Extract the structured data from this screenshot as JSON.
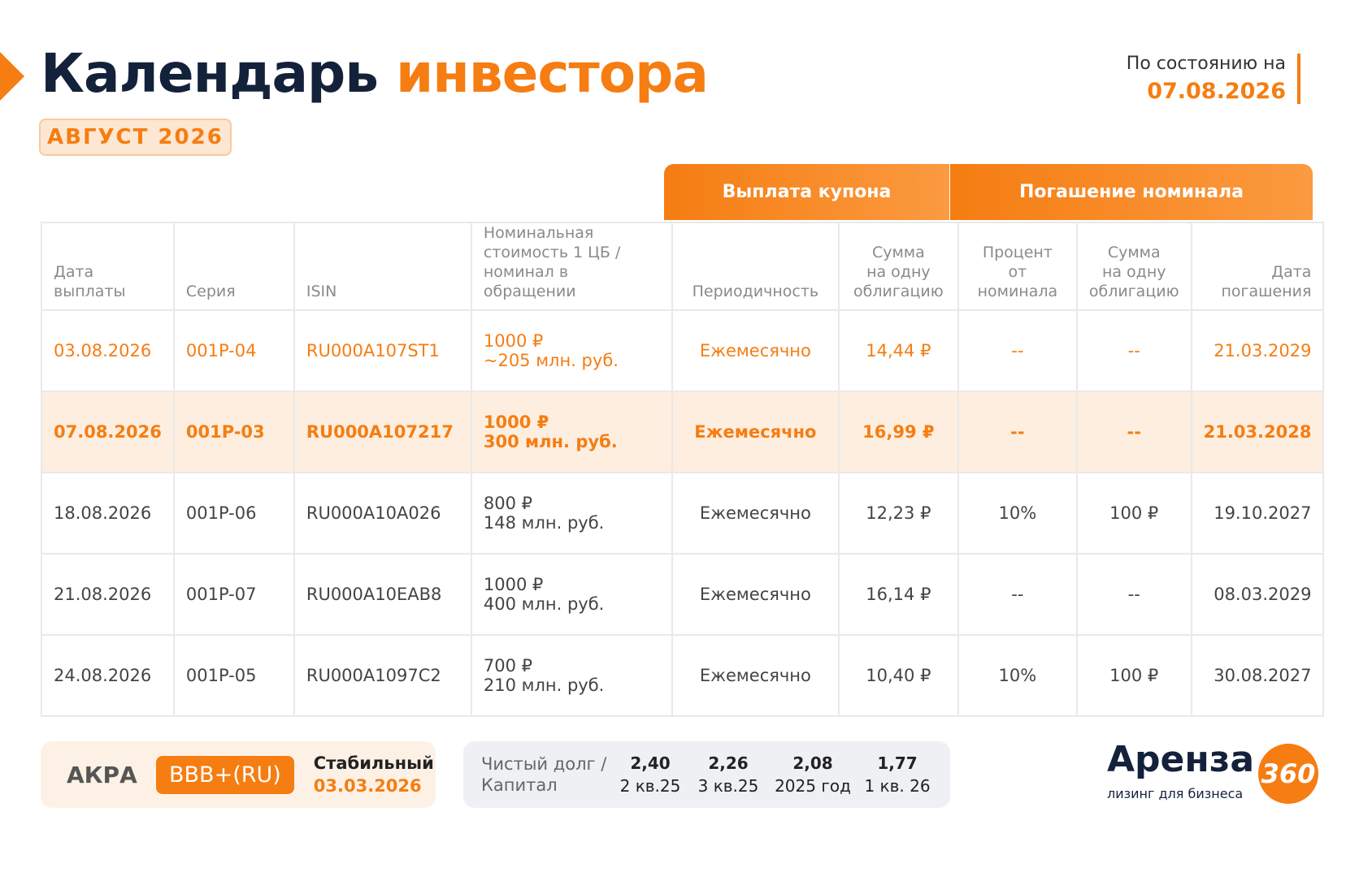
{
  "header": {
    "title_main": "Календарь",
    "title_accent": "инвестора",
    "month": "АВГУСТ 2026",
    "status_label": "По состоянию на",
    "status_date": "07.08.2026"
  },
  "table": {
    "group_headers": [
      "Выплата купона",
      "Погашение номинала"
    ],
    "columns": [
      [
        "Дата",
        "выплаты"
      ],
      [
        "Серия"
      ],
      [
        "ISIN"
      ],
      [
        "Номинальная",
        "стоимость 1 ЦБ /",
        "номинал в обращении"
      ],
      [
        "Периодичность"
      ],
      [
        "Сумма",
        "на одну",
        "облигацию"
      ],
      [
        "Процент",
        "от номинала"
      ],
      [
        "Сумма",
        "на одну",
        "облигацию"
      ],
      [
        "Дата",
        "погашения"
      ]
    ],
    "rows": [
      [
        "03.08.2026",
        "001P-04",
        "RU000A107ST1",
        [
          "1000 ₽",
          "~205 млн. руб."
        ],
        "Ежемесячно",
        "14,44 ₽",
        "--",
        "--",
        "21.03.2029"
      ],
      [
        "07.08.2026",
        "001P-03",
        "RU000A107217",
        [
          "1000 ₽",
          "300 млн. руб."
        ],
        "Ежемесячно",
        "16,99 ₽",
        "--",
        "--",
        "21.03.2028"
      ],
      [
        "18.08.2026",
        "001P-06",
        "RU000A10A026",
        [
          "800 ₽",
          "148 млн. руб."
        ],
        "Ежемесячно",
        "12,23 ₽",
        "10%",
        "100 ₽",
        "19.10.2027"
      ],
      [
        "21.08.2026",
        "001P-07",
        "RU000A10EAB8",
        [
          "1000 ₽",
          "400 млн. руб."
        ],
        "Ежемесячно",
        "16,14 ₽",
        "--",
        "--",
        "08.03.2029"
      ],
      [
        "24.08.2026",
        "001P-05",
        "RU000A1097C2",
        [
          "700 ₽",
          "210 млн. руб."
        ],
        "Ежемесячно",
        "10,40 ₽",
        "10%",
        "100 ₽",
        "30.08.2027"
      ]
    ]
  },
  "rating": {
    "agency": "АКРА",
    "grade": "BBB+(RU)",
    "outlook": "Стабильный",
    "date": "03.03.2026"
  },
  "debt": {
    "label": [
      "Чистый долг /",
      "Капитал"
    ],
    "items": [
      {
        "value": "2,40",
        "period": "2 кв.25"
      },
      {
        "value": "2,26",
        "period": "3 кв.25"
      },
      {
        "value": "2,08",
        "period": "2025 год"
      },
      {
        "value": "1,77",
        "period": "1 кв. 26"
      }
    ]
  },
  "logo": {
    "name": "Аренза",
    "badge": "360",
    "tagline": "лизинг для бизнеса"
  }
}
